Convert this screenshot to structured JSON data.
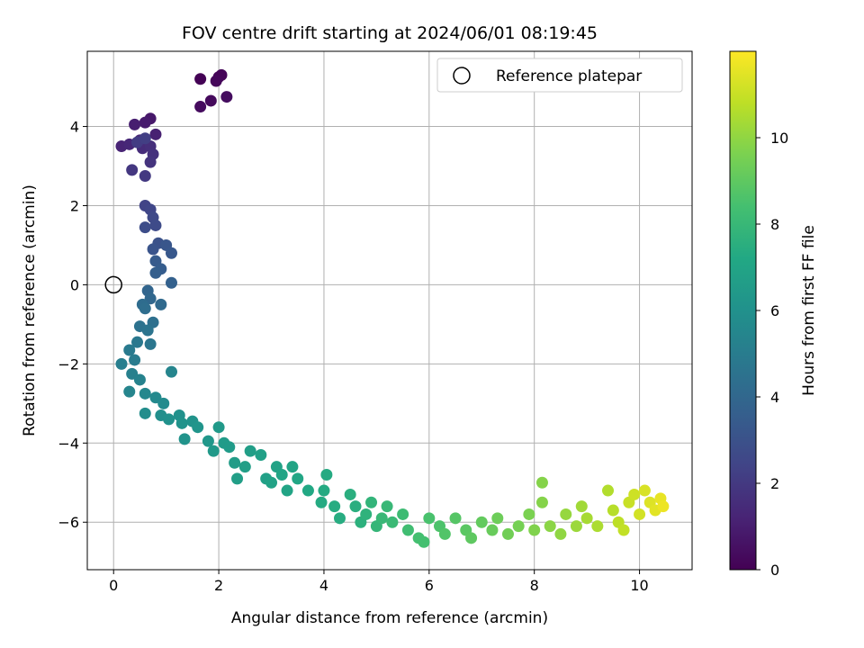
{
  "chart_data": {
    "type": "scatter",
    "title": "FOV centre drift starting at 2024/06/01 08:19:45",
    "xlabel": "Angular distance from reference (arcmin)",
    "ylabel": "Rotation from reference (arcmin)",
    "xlim": [
      -0.5,
      11
    ],
    "ylim": [
      -7.2,
      5.9
    ],
    "xticks": [
      0,
      2,
      4,
      6,
      8,
      10
    ],
    "yticks": [
      -6,
      -4,
      -2,
      0,
      2,
      4
    ],
    "grid": true,
    "legend": {
      "location": "top-right",
      "entries": [
        "Reference platepar"
      ]
    },
    "colorbar": {
      "label": "Hours from first FF file",
      "colormap": "viridis",
      "range": [
        0,
        12
      ],
      "ticks": [
        0,
        2,
        4,
        6,
        8,
        10
      ]
    },
    "reference_point": {
      "x": 0,
      "y": 0,
      "label": "Reference platepar"
    },
    "points": [
      [
        1.65,
        5.2,
        0.05
      ],
      [
        2.0,
        5.25,
        0.1
      ],
      [
        2.05,
        5.3,
        0.15
      ],
      [
        1.95,
        5.15,
        0.2
      ],
      [
        1.85,
        4.65,
        0.3
      ],
      [
        1.65,
        4.5,
        0.35
      ],
      [
        2.15,
        4.75,
        0.4
      ],
      [
        0.7,
        4.2,
        0.8
      ],
      [
        0.6,
        4.1,
        0.9
      ],
      [
        0.4,
        4.05,
        1.0
      ],
      [
        0.8,
        3.8,
        1.1
      ],
      [
        0.15,
        3.5,
        1.2
      ],
      [
        0.3,
        3.55,
        1.3
      ],
      [
        0.5,
        3.65,
        1.4
      ],
      [
        0.55,
        3.45,
        1.5
      ],
      [
        0.7,
        3.5,
        1.6
      ],
      [
        0.75,
        3.3,
        1.7
      ],
      [
        0.7,
        3.1,
        1.8
      ],
      [
        0.35,
        2.9,
        1.9
      ],
      [
        0.6,
        2.75,
        2.0
      ],
      [
        0.45,
        3.6,
        2.1
      ],
      [
        0.6,
        3.7,
        2.2
      ],
      [
        0.6,
        2.0,
        2.4
      ],
      [
        0.7,
        1.9,
        2.5
      ],
      [
        0.75,
        1.7,
        2.6
      ],
      [
        0.8,
        1.5,
        2.7
      ],
      [
        0.6,
        1.45,
        2.8
      ],
      [
        0.85,
        1.05,
        3.0
      ],
      [
        0.75,
        0.9,
        3.1
      ],
      [
        1.0,
        1.0,
        3.2
      ],
      [
        1.1,
        0.8,
        3.3
      ],
      [
        0.8,
        0.6,
        3.4
      ],
      [
        0.9,
        0.4,
        3.5
      ],
      [
        0.8,
        0.3,
        3.6
      ],
      [
        1.1,
        0.05,
        3.7
      ],
      [
        0.65,
        -0.15,
        3.9
      ],
      [
        0.7,
        -0.35,
        4.0
      ],
      [
        0.9,
        -0.5,
        4.1
      ],
      [
        0.55,
        -0.5,
        4.2
      ],
      [
        0.6,
        -0.6,
        4.3
      ],
      [
        0.75,
        -0.95,
        4.4
      ],
      [
        0.5,
        -1.05,
        4.5
      ],
      [
        0.65,
        -1.15,
        4.6
      ],
      [
        0.7,
        -1.5,
        4.7
      ],
      [
        0.45,
        -1.45,
        4.8
      ],
      [
        0.3,
        -1.65,
        4.9
      ],
      [
        0.4,
        -1.9,
        5.0
      ],
      [
        0.15,
        -2.0,
        5.1
      ],
      [
        0.35,
        -2.25,
        5.2
      ],
      [
        0.5,
        -2.4,
        5.3
      ],
      [
        0.3,
        -2.7,
        5.4
      ],
      [
        0.6,
        -2.75,
        5.5
      ],
      [
        0.8,
        -2.85,
        5.6
      ],
      [
        0.95,
        -3.0,
        5.7
      ],
      [
        0.6,
        -3.25,
        5.8
      ],
      [
        0.9,
        -3.3,
        5.9
      ],
      [
        1.05,
        -3.4,
        6.0
      ],
      [
        1.1,
        -2.2,
        5.4
      ],
      [
        1.25,
        -3.3,
        6.0
      ],
      [
        1.3,
        -3.5,
        6.1
      ],
      [
        1.35,
        -3.9,
        6.1
      ],
      [
        1.5,
        -3.45,
        6.1
      ],
      [
        1.6,
        -3.6,
        6.2
      ],
      [
        1.8,
        -3.95,
        6.3
      ],
      [
        1.9,
        -4.2,
        6.4
      ],
      [
        2.0,
        -3.6,
        6.4
      ],
      [
        2.1,
        -4.0,
        6.5
      ],
      [
        2.2,
        -4.1,
        6.5
      ],
      [
        2.3,
        -4.5,
        6.6
      ],
      [
        2.5,
        -4.6,
        6.7
      ],
      [
        2.35,
        -4.9,
        6.7
      ],
      [
        2.6,
        -4.2,
        6.7
      ],
      [
        2.8,
        -4.3,
        6.8
      ],
      [
        2.9,
        -4.9,
        6.8
      ],
      [
        3.0,
        -5.0,
        6.9
      ],
      [
        3.1,
        -4.6,
        6.9
      ],
      [
        3.2,
        -4.8,
        7.0
      ],
      [
        3.3,
        -5.2,
        7.0
      ],
      [
        3.4,
        -4.6,
        7.0
      ],
      [
        3.5,
        -4.9,
        7.1
      ],
      [
        3.7,
        -5.2,
        7.2
      ],
      [
        3.95,
        -5.5,
        7.3
      ],
      [
        4.0,
        -5.2,
        7.3
      ],
      [
        4.05,
        -4.8,
        7.3
      ],
      [
        4.2,
        -5.6,
        7.4
      ],
      [
        4.3,
        -5.9,
        7.4
      ],
      [
        4.5,
        -5.3,
        7.5
      ],
      [
        4.6,
        -5.6,
        7.5
      ],
      [
        4.7,
        -6.0,
        7.6
      ],
      [
        4.8,
        -5.8,
        7.7
      ],
      [
        4.9,
        -5.5,
        7.8
      ],
      [
        5.0,
        -6.1,
        7.9
      ],
      [
        5.1,
        -5.9,
        8.0
      ],
      [
        5.2,
        -5.6,
        8.0
      ],
      [
        5.3,
        -6.0,
        8.1
      ],
      [
        5.5,
        -5.8,
        8.2
      ],
      [
        5.6,
        -6.2,
        8.3
      ],
      [
        5.8,
        -6.4,
        8.4
      ],
      [
        5.9,
        -6.5,
        8.4
      ],
      [
        6.0,
        -5.9,
        8.5
      ],
      [
        6.2,
        -6.1,
        8.6
      ],
      [
        6.3,
        -6.3,
        8.7
      ],
      [
        6.5,
        -5.9,
        8.8
      ],
      [
        6.7,
        -6.2,
        8.9
      ],
      [
        6.8,
        -6.4,
        9.0
      ],
      [
        7.0,
        -6.0,
        9.1
      ],
      [
        7.2,
        -6.2,
        9.2
      ],
      [
        7.3,
        -5.9,
        9.3
      ],
      [
        7.5,
        -6.3,
        9.4
      ],
      [
        7.7,
        -6.1,
        9.5
      ],
      [
        7.9,
        -5.8,
        9.6
      ],
      [
        8.0,
        -6.2,
        9.7
      ],
      [
        8.15,
        -5.0,
        9.8
      ],
      [
        8.15,
        -5.5,
        9.8
      ],
      [
        8.3,
        -6.1,
        9.9
      ],
      [
        8.5,
        -6.3,
        10.0
      ],
      [
        8.6,
        -5.8,
        10.1
      ],
      [
        8.8,
        -6.1,
        10.2
      ],
      [
        8.9,
        -5.6,
        10.3
      ],
      [
        9.0,
        -5.9,
        10.4
      ],
      [
        9.2,
        -6.1,
        10.5
      ],
      [
        9.4,
        -5.2,
        10.6
      ],
      [
        9.5,
        -5.7,
        10.7
      ],
      [
        9.6,
        -6.0,
        10.8
      ],
      [
        9.7,
        -6.2,
        10.9
      ],
      [
        9.8,
        -5.5,
        11.0
      ],
      [
        9.9,
        -5.3,
        11.1
      ],
      [
        10.0,
        -5.8,
        11.2
      ],
      [
        10.1,
        -5.2,
        11.3
      ],
      [
        10.2,
        -5.5,
        11.4
      ],
      [
        10.3,
        -5.7,
        11.5
      ],
      [
        10.4,
        -5.4,
        11.6
      ],
      [
        10.45,
        -5.6,
        11.7
      ]
    ]
  }
}
